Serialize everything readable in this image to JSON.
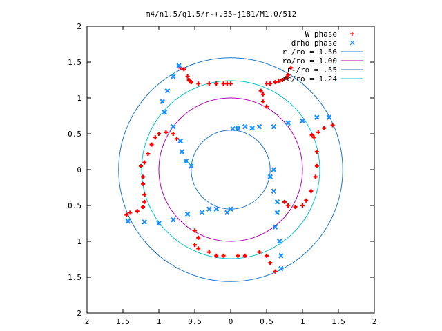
{
  "chart_data": {
    "type": "scatter",
    "title": "m4/n1.5/q1.5/r-+.35-j181/M1.0/512",
    "xlabel": "",
    "ylabel": "",
    "xlim": [
      -2,
      2
    ],
    "ylim": [
      -2,
      2
    ],
    "x_tick_values": [
      -2,
      -1.5,
      -1,
      -0.5,
      0,
      0.5,
      1,
      1.5,
      2
    ],
    "x_tick_labels": [
      "2",
      "1.5",
      "1",
      "0.5",
      "0",
      "0.5",
      "1",
      "1.5",
      "2"
    ],
    "y_tick_values": [
      2,
      1.5,
      1,
      0.5,
      0,
      -0.5,
      -1,
      -1.5,
      -2
    ],
    "y_tick_labels": [
      "2",
      "1.5",
      "1",
      "0.5",
      "0",
      "0.5",
      "1",
      "1.5",
      "2"
    ],
    "grid": false,
    "legend_position": "top-right",
    "circles": [
      {
        "name": "r+/ro = 1.56",
        "radius": 1.56,
        "color": "#1e78c8"
      },
      {
        "name": "ro/ro = 1.00",
        "radius": 1.0,
        "color": "#b000b0"
      },
      {
        "name": "r-/ro = .55",
        "radius": 0.55,
        "color": "#1e78c8"
      },
      {
        "name": "rc/ro = 1.24",
        "radius": 1.24,
        "color": "#00c8c8"
      }
    ],
    "series": [
      {
        "name": "W phase",
        "marker": "plus",
        "color": "#ff0000",
        "points": [
          [
            0.5,
            1.2
          ],
          [
            0.62,
            1.22
          ],
          [
            0.72,
            1.25
          ],
          [
            0.8,
            1.32
          ],
          [
            0.84,
            1.42
          ],
          [
            0.55,
            1.2
          ],
          [
            0.67,
            1.23
          ],
          [
            0.77,
            1.28
          ],
          [
            0.0,
            1.2
          ],
          [
            -0.05,
            1.2
          ],
          [
            -0.1,
            1.2
          ],
          [
            -0.2,
            1.2
          ],
          [
            -0.3,
            1.2
          ],
          [
            -0.45,
            1.2
          ],
          [
            -0.55,
            1.22
          ],
          [
            -0.6,
            1.3
          ],
          [
            -0.65,
            1.4
          ],
          [
            -0.7,
            1.42
          ],
          [
            -0.58,
            1.25
          ],
          [
            -0.75,
            0.43
          ],
          [
            -0.8,
            0.5
          ],
          [
            -0.9,
            0.52
          ],
          [
            -1.0,
            0.5
          ],
          [
            -1.05,
            0.45
          ],
          [
            -1.1,
            0.35
          ],
          [
            -1.15,
            0.22
          ],
          [
            -1.2,
            0.1
          ],
          [
            -1.25,
            0.05
          ],
          [
            -1.22,
            -0.1
          ],
          [
            -1.22,
            -0.2
          ],
          [
            -1.2,
            -0.35
          ],
          [
            -1.2,
            -0.45
          ],
          [
            -1.22,
            -0.52
          ],
          [
            -1.3,
            -0.58
          ],
          [
            -1.4,
            -0.6
          ],
          [
            -1.45,
            -0.63
          ],
          [
            -0.5,
            -0.85
          ],
          [
            -0.45,
            -0.95
          ],
          [
            -0.5,
            -1.05
          ],
          [
            -0.45,
            -1.1
          ],
          [
            -0.3,
            -1.15
          ],
          [
            -0.2,
            -1.2
          ],
          [
            -0.1,
            -1.2
          ],
          [
            0.1,
            -1.2
          ],
          [
            0.2,
            -1.2
          ],
          [
            0.4,
            -1.15
          ],
          [
            0.5,
            -1.2
          ],
          [
            0.55,
            -1.3
          ],
          [
            0.62,
            -1.42
          ],
          [
            0.75,
            -0.45
          ],
          [
            0.8,
            -0.5
          ],
          [
            0.9,
            -0.52
          ],
          [
            1.0,
            -0.5
          ],
          [
            1.05,
            -0.43
          ],
          [
            1.12,
            -0.3
          ],
          [
            1.18,
            -0.1
          ],
          [
            1.2,
            0.05
          ],
          [
            1.2,
            0.25
          ],
          [
            1.16,
            0.45
          ],
          [
            1.13,
            0.48
          ],
          [
            1.22,
            0.52
          ],
          [
            1.3,
            0.58
          ],
          [
            1.42,
            0.62
          ],
          [
            0.5,
            0.88
          ],
          [
            0.45,
            0.95
          ],
          [
            0.45,
            1.05
          ],
          [
            0.42,
            1.1
          ]
        ]
      },
      {
        "name": "drho phase",
        "marker": "x",
        "color": "#1e90ff",
        "points": [
          [
            -0.72,
            1.45
          ],
          [
            -0.8,
            1.3
          ],
          [
            -0.88,
            1.1
          ],
          [
            -0.95,
            0.95
          ],
          [
            -0.92,
            0.8
          ],
          [
            -0.8,
            0.6
          ],
          [
            -0.7,
            0.4
          ],
          [
            -0.68,
            0.25
          ],
          [
            -0.62,
            0.12
          ],
          [
            -0.55,
            0.05
          ],
          [
            -1.43,
            -0.72
          ],
          [
            -1.2,
            -0.73
          ],
          [
            -1.0,
            -0.75
          ],
          [
            -0.8,
            -0.7
          ],
          [
            -0.6,
            -0.62
          ],
          [
            -0.4,
            -0.6
          ],
          [
            -0.3,
            -0.55
          ],
          [
            -0.2,
            -0.55
          ],
          [
            -0.05,
            -0.6
          ],
          [
            0.0,
            -0.55
          ],
          [
            0.7,
            -1.38
          ],
          [
            0.7,
            -1.2
          ],
          [
            0.68,
            -1.0
          ],
          [
            0.62,
            -0.8
          ],
          [
            0.65,
            -0.6
          ],
          [
            0.65,
            -0.45
          ],
          [
            0.6,
            -0.3
          ],
          [
            0.55,
            -0.1
          ],
          [
            0.6,
            0.0
          ],
          [
            1.37,
            0.73
          ],
          [
            1.2,
            0.73
          ],
          [
            1.0,
            0.68
          ],
          [
            0.8,
            0.65
          ],
          [
            0.6,
            0.6
          ],
          [
            0.4,
            0.6
          ],
          [
            0.3,
            0.58
          ],
          [
            0.2,
            0.6
          ],
          [
            0.1,
            0.58
          ],
          [
            0.03,
            0.57
          ]
        ]
      }
    ]
  }
}
